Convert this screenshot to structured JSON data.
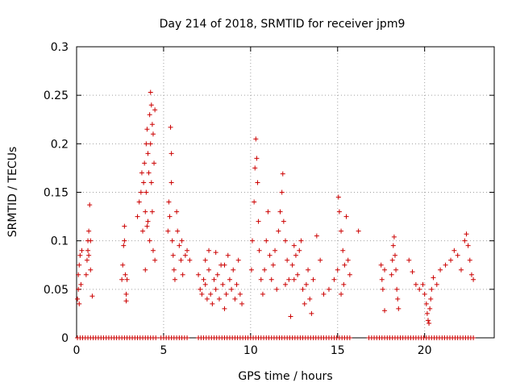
{
  "chart_data": {
    "type": "scatter",
    "title": "Day 214 of 2018, SRMTID for receiver jpm9",
    "xlabel": "GPS time / hours",
    "ylabel": "SRMTID / TECUs",
    "xlim": [
      0,
      24
    ],
    "ylim": [
      0,
      0.3
    ],
    "xticks": [
      0,
      5,
      10,
      15,
      20
    ],
    "xtick_labels": [
      "0",
      "5",
      "10",
      "15",
      "20"
    ],
    "yticks": [
      0,
      0.05,
      0.1,
      0.15,
      0.2,
      0.25,
      0.3
    ],
    "ytick_labels": [
      "0",
      "0.05",
      "0.1",
      "0.15",
      "0.2",
      "0.25",
      "0.3"
    ],
    "grid": true,
    "marker": "+",
    "color": "#cc0000",
    "series": [
      {
        "name": "SRMTID",
        "points": [
          [
            0.05,
            0.04
          ],
          [
            0.1,
            0.05
          ],
          [
            0.1,
            0.065
          ],
          [
            0.15,
            0.075
          ],
          [
            0.2,
            0.085
          ],
          [
            0.15,
            0.035
          ],
          [
            0.25,
            0.055
          ],
          [
            0.3,
            0.09
          ],
          [
            0.55,
            0.065
          ],
          [
            0.6,
            0.08
          ],
          [
            0.65,
            0.09
          ],
          [
            0.65,
            0.1
          ],
          [
            0.7,
            0.085
          ],
          [
            0.7,
            0.11
          ],
          [
            0.75,
            0.137
          ],
          [
            0.8,
            0.1
          ],
          [
            0.8,
            0.07
          ],
          [
            0.9,
            0.043
          ],
          [
            2.6,
            0.06
          ],
          [
            2.65,
            0.075
          ],
          [
            2.7,
            0.095
          ],
          [
            2.75,
            0.1
          ],
          [
            2.75,
            0.115
          ],
          [
            2.8,
            0.065
          ],
          [
            2.85,
            0.045
          ],
          [
            2.85,
            0.038
          ],
          [
            2.9,
            0.06
          ],
          [
            3.5,
            0.125
          ],
          [
            3.6,
            0.14
          ],
          [
            3.7,
            0.15
          ],
          [
            3.75,
            0.17
          ],
          [
            3.8,
            0.11
          ],
          [
            3.85,
            0.16
          ],
          [
            3.9,
            0.18
          ],
          [
            3.95,
            0.13
          ],
          [
            4.0,
            0.2
          ],
          [
            4.0,
            0.15
          ],
          [
            4.05,
            0.215
          ],
          [
            4.1,
            0.19
          ],
          [
            4.1,
            0.12
          ],
          [
            4.15,
            0.17
          ],
          [
            4.2,
            0.23
          ],
          [
            4.2,
            0.1
          ],
          [
            4.25,
            0.253
          ],
          [
            4.25,
            0.2
          ],
          [
            4.3,
            0.24
          ],
          [
            4.3,
            0.16
          ],
          [
            4.35,
            0.22
          ],
          [
            4.35,
            0.13
          ],
          [
            4.4,
            0.21
          ],
          [
            4.4,
            0.09
          ],
          [
            4.45,
            0.18
          ],
          [
            4.5,
            0.08
          ],
          [
            4.5,
            0.235
          ],
          [
            3.95,
            0.07
          ],
          [
            4.05,
            0.115
          ],
          [
            5.25,
            0.11
          ],
          [
            5.3,
            0.14
          ],
          [
            5.35,
            0.125
          ],
          [
            5.4,
            0.217
          ],
          [
            5.45,
            0.19
          ],
          [
            5.45,
            0.16
          ],
          [
            5.5,
            0.1
          ],
          [
            5.55,
            0.085
          ],
          [
            5.6,
            0.07
          ],
          [
            5.65,
            0.06
          ],
          [
            5.75,
            0.13
          ],
          [
            5.8,
            0.11
          ],
          [
            5.9,
            0.095
          ],
          [
            6.0,
            0.08
          ],
          [
            6.05,
            0.1
          ],
          [
            6.1,
            0.065
          ],
          [
            6.25,
            0.085
          ],
          [
            6.35,
            0.09
          ],
          [
            6.5,
            0.08
          ],
          [
            7.0,
            0.065
          ],
          [
            7.1,
            0.05
          ],
          [
            7.2,
            0.045
          ],
          [
            7.3,
            0.06
          ],
          [
            7.4,
            0.055
          ],
          [
            7.5,
            0.04
          ],
          [
            7.6,
            0.07
          ],
          [
            7.7,
            0.045
          ],
          [
            7.8,
            0.035
          ],
          [
            7.9,
            0.06
          ],
          [
            8.0,
            0.05
          ],
          [
            8.1,
            0.065
          ],
          [
            8.2,
            0.04
          ],
          [
            8.3,
            0.075
          ],
          [
            8.4,
            0.055
          ],
          [
            8.5,
            0.03
          ],
          [
            8.6,
            0.045
          ],
          [
            8.7,
            0.085
          ],
          [
            8.8,
            0.06
          ],
          [
            8.9,
            0.05
          ],
          [
            9.0,
            0.07
          ],
          [
            9.1,
            0.04
          ],
          [
            9.2,
            0.055
          ],
          [
            9.3,
            0.08
          ],
          [
            9.4,
            0.045
          ],
          [
            9.5,
            0.035
          ],
          [
            7.4,
            0.08
          ],
          [
            7.6,
            0.09
          ],
          [
            8.0,
            0.088
          ],
          [
            8.5,
            0.075
          ],
          [
            10.05,
            0.07
          ],
          [
            10.1,
            0.1
          ],
          [
            10.2,
            0.14
          ],
          [
            10.25,
            0.175
          ],
          [
            10.3,
            0.205
          ],
          [
            10.35,
            0.185
          ],
          [
            10.4,
            0.16
          ],
          [
            10.45,
            0.12
          ],
          [
            10.5,
            0.09
          ],
          [
            10.6,
            0.06
          ],
          [
            10.7,
            0.045
          ],
          [
            10.8,
            0.07
          ],
          [
            10.9,
            0.1
          ],
          [
            11.0,
            0.13
          ],
          [
            11.1,
            0.085
          ],
          [
            11.2,
            0.06
          ],
          [
            11.3,
            0.075
          ],
          [
            11.4,
            0.09
          ],
          [
            11.6,
            0.11
          ],
          [
            11.7,
            0.13
          ],
          [
            11.8,
            0.15
          ],
          [
            11.85,
            0.169
          ],
          [
            11.9,
            0.12
          ],
          [
            12.0,
            0.1
          ],
          [
            12.1,
            0.08
          ],
          [
            12.2,
            0.06
          ],
          [
            12.3,
            0.022
          ],
          [
            12.4,
            0.075
          ],
          [
            12.5,
            0.095
          ],
          [
            12.6,
            0.085
          ],
          [
            12.7,
            0.065
          ],
          [
            12.8,
            0.09
          ],
          [
            12.9,
            0.1
          ],
          [
            11.5,
            0.05
          ],
          [
            12.0,
            0.055
          ],
          [
            12.5,
            0.06
          ],
          [
            13.0,
            0.05
          ],
          [
            13.1,
            0.035
          ],
          [
            13.2,
            0.055
          ],
          [
            13.3,
            0.07
          ],
          [
            13.4,
            0.04
          ],
          [
            13.5,
            0.025
          ],
          [
            13.6,
            0.06
          ],
          [
            13.8,
            0.105
          ],
          [
            14.0,
            0.08
          ],
          [
            14.2,
            0.045
          ],
          [
            14.5,
            0.05
          ],
          [
            14.8,
            0.06
          ],
          [
            15.0,
            0.07
          ],
          [
            15.05,
            0.145
          ],
          [
            15.1,
            0.13
          ],
          [
            15.2,
            0.11
          ],
          [
            15.3,
            0.09
          ],
          [
            15.4,
            0.075
          ],
          [
            15.5,
            0.125
          ],
          [
            15.6,
            0.08
          ],
          [
            15.7,
            0.065
          ],
          [
            15.2,
            0.045
          ],
          [
            15.35,
            0.055
          ],
          [
            16.2,
            0.11
          ],
          [
            17.5,
            0.075
          ],
          [
            17.55,
            0.06
          ],
          [
            17.6,
            0.05
          ],
          [
            17.7,
            0.07
          ],
          [
            17.7,
            0.028
          ],
          [
            18.1,
            0.065
          ],
          [
            18.15,
            0.08
          ],
          [
            18.2,
            0.095
          ],
          [
            18.25,
            0.104
          ],
          [
            18.3,
            0.085
          ],
          [
            18.35,
            0.07
          ],
          [
            18.4,
            0.05
          ],
          [
            18.45,
            0.04
          ],
          [
            18.5,
            0.03
          ],
          [
            19.1,
            0.08
          ],
          [
            19.3,
            0.068
          ],
          [
            19.5,
            0.055
          ],
          [
            19.7,
            0.05
          ],
          [
            19.9,
            0.055
          ],
          [
            20.0,
            0.045
          ],
          [
            20.1,
            0.035
          ],
          [
            20.15,
            0.025
          ],
          [
            20.2,
            0.018
          ],
          [
            20.25,
            0.015
          ],
          [
            20.3,
            0.03
          ],
          [
            20.35,
            0.04
          ],
          [
            20.4,
            0.05
          ],
          [
            20.5,
            0.062
          ],
          [
            20.7,
            0.055
          ],
          [
            20.9,
            0.07
          ],
          [
            21.2,
            0.075
          ],
          [
            21.5,
            0.08
          ],
          [
            21.7,
            0.09
          ],
          [
            21.9,
            0.085
          ],
          [
            22.1,
            0.07
          ],
          [
            22.3,
            0.1
          ],
          [
            22.4,
            0.107
          ],
          [
            22.5,
            0.095
          ],
          [
            22.6,
            0.08
          ],
          [
            22.7,
            0.065
          ],
          [
            22.8,
            0.06
          ]
        ]
      }
    ],
    "baseline_points_x": [
      0.05,
      0.2,
      0.35,
      0.5,
      0.65,
      0.8,
      0.95,
      1.1,
      1.25,
      1.4,
      1.55,
      1.7,
      1.85,
      2.0,
      2.15,
      2.3,
      2.45,
      2.6,
      2.75,
      2.9,
      3.05,
      3.2,
      3.35,
      3.5,
      3.65,
      3.8,
      3.95,
      4.1,
      4.25,
      4.4,
      4.55,
      4.85,
      5.0,
      5.15,
      5.3,
      5.45,
      5.6,
      5.75,
      5.9,
      6.05,
      6.2,
      6.35,
      7.0,
      7.15,
      7.3,
      7.45,
      7.6,
      7.75,
      7.9,
      8.05,
      8.2,
      8.35,
      8.5,
      8.65,
      8.8,
      8.95,
      9.1,
      9.25,
      9.4,
      9.55,
      9.7,
      9.85,
      10.0,
      10.15,
      10.3,
      10.45,
      10.6,
      10.75,
      10.9,
      11.05,
      11.2,
      11.35,
      11.5,
      11.65,
      11.8,
      11.95,
      12.1,
      12.25,
      12.4,
      12.55,
      12.7,
      12.85,
      13.0,
      13.15,
      13.3,
      13.45,
      13.6,
      13.75,
      13.9,
      14.05,
      14.2,
      14.35,
      14.5,
      14.65,
      14.8,
      14.95,
      15.1,
      15.25,
      15.4,
      15.55,
      15.7,
      16.8,
      16.95,
      17.1,
      17.25,
      17.4,
      17.55,
      17.7,
      17.85,
      18.0,
      18.15,
      18.3,
      18.45,
      18.6,
      18.75,
      18.9,
      19.05,
      19.2,
      19.35,
      19.5,
      19.65,
      19.8,
      19.95,
      20.1,
      20.25,
      20.4,
      20.55,
      20.7,
      20.85,
      21.0,
      21.15,
      21.3,
      21.45,
      21.6,
      21.75,
      21.9,
      22.05,
      22.2,
      22.35,
      22.5,
      22.65,
      22.8
    ]
  }
}
